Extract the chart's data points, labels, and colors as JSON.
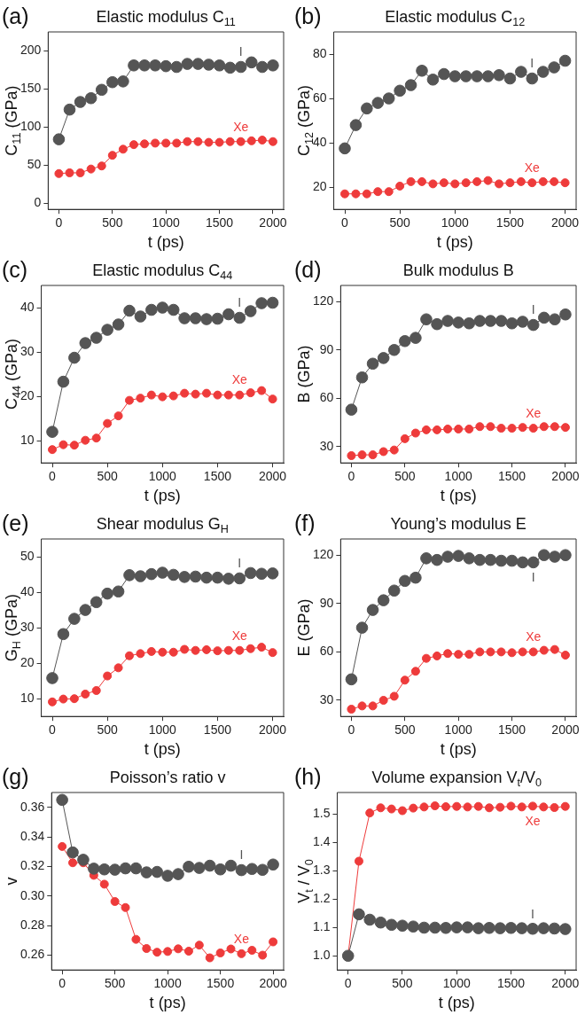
{
  "chart_data": [
    {
      "type": "line",
      "title": "Elastic modulus C$_{11}$",
      "xlabel": "t (ps)",
      "ylabel": "C$_{11}$ (GPa)",
      "annotations": [
        "(a)"
      ],
      "marker": "circle",
      "x": [
        0,
        100,
        200,
        300,
        400,
        500,
        600,
        700,
        800,
        900,
        1000,
        1100,
        1200,
        1300,
        1400,
        1500,
        1600,
        1700,
        1800,
        1900,
        2000
      ],
      "xlim": [
        -100,
        2100
      ],
      "xticks": [
        0,
        500,
        1000,
        1500,
        2000
      ],
      "ylim": [
        -8,
        225
      ],
      "yticks": [
        0,
        50,
        100,
        150,
        200
      ],
      "series": [
        {
          "name": "I",
          "color": "#555555",
          "values": [
            84,
            123,
            133,
            138,
            149,
            159,
            160,
            181,
            181,
            181,
            180,
            179,
            183,
            183,
            182,
            181,
            178,
            179,
            185,
            179,
            181
          ]
        },
        {
          "name": "Xe",
          "color": "#ee3b3b",
          "values": [
            39,
            40,
            40,
            45,
            49,
            63,
            71,
            77,
            78,
            79,
            79,
            79,
            81,
            81,
            80,
            80,
            81,
            81,
            82,
            83,
            81
          ]
        }
      ]
    },
    {
      "type": "line",
      "title": "Elastic modulus C$_{12}$",
      "xlabel": "t (ps)",
      "ylabel": "C$_{12}$ (GPa)",
      "annotations": [
        "(b)"
      ],
      "marker": "circle",
      "x": [
        0,
        100,
        200,
        300,
        400,
        500,
        600,
        700,
        800,
        900,
        1000,
        1100,
        1200,
        1300,
        1400,
        1500,
        1600,
        1700,
        1800,
        1900,
        2000
      ],
      "xlim": [
        -100,
        2100
      ],
      "xticks": [
        0,
        500,
        1000,
        1500,
        2000
      ],
      "ylim": [
        10,
        90
      ],
      "yticks": [
        20,
        40,
        60,
        80
      ],
      "series": [
        {
          "name": "I",
          "color": "#555555",
          "values": [
            37.5,
            48,
            55.5,
            58,
            60,
            63.5,
            66,
            72.5,
            68.5,
            71,
            70,
            70,
            70,
            70,
            70.5,
            69,
            72,
            69,
            72,
            74,
            77
          ]
        },
        {
          "name": "Xe",
          "color": "#ee3b3b",
          "values": [
            17,
            17,
            17,
            18,
            18,
            20.5,
            22.5,
            22.5,
            21.5,
            22,
            21.5,
            22,
            22.5,
            23,
            21.5,
            22,
            22.5,
            22,
            22.5,
            22.5,
            22
          ]
        }
      ]
    },
    {
      "type": "line",
      "title": "Elastic modulus C$_{44}$",
      "xlabel": "t (ps)",
      "ylabel": "C$_{44}$ (GPa)",
      "annotations": [
        "(c)"
      ],
      "marker": "circle",
      "x": [
        0,
        100,
        200,
        300,
        400,
        500,
        600,
        700,
        800,
        900,
        1000,
        1100,
        1200,
        1300,
        1400,
        1500,
        1600,
        1700,
        1800,
        1900,
        2000
      ],
      "xlim": [
        -100,
        2100
      ],
      "xticks": [
        0,
        500,
        1000,
        1500,
        2000
      ],
      "ylim": [
        5,
        45
      ],
      "yticks": [
        10,
        20,
        30,
        40
      ],
      "series": [
        {
          "name": "I",
          "color": "#555555",
          "values": [
            12,
            23.3,
            28.7,
            32,
            33.2,
            35,
            36.2,
            39.3,
            38,
            39.5,
            40,
            39.5,
            37.6,
            37.6,
            37.4,
            37.5,
            38.5,
            37.7,
            39.2,
            41,
            41.1
          ]
        },
        {
          "name": "Xe",
          "color": "#ee3b3b",
          "values": [
            8,
            9.1,
            9,
            10.1,
            10.6,
            13.9,
            15.6,
            19.1,
            19.6,
            20.3,
            19.9,
            20.1,
            20.7,
            20.5,
            20.7,
            20.3,
            20.3,
            20.3,
            20.8,
            21.3,
            19.4
          ]
        }
      ]
    },
    {
      "type": "line",
      "title": "Bulk modulus B",
      "xlabel": "t (ps)",
      "ylabel": "B (GPa)",
      "annotations": [
        "(d)"
      ],
      "marker": "circle",
      "x": [
        0,
        100,
        200,
        300,
        400,
        500,
        600,
        700,
        800,
        900,
        1000,
        1100,
        1200,
        1300,
        1400,
        1500,
        1600,
        1700,
        1800,
        1900,
        2000
      ],
      "xlim": [
        -100,
        2100
      ],
      "xticks": [
        0,
        500,
        1000,
        1500,
        2000
      ],
      "ylim": [
        20,
        130
      ],
      "yticks": [
        30,
        60,
        90,
        120
      ],
      "series": [
        {
          "name": "I",
          "color": "#555555",
          "values": [
            53,
            73,
            81.5,
            85,
            90,
            95.5,
            97.5,
            109,
            106,
            108,
            107,
            106.5,
            108,
            108,
            108,
            106.5,
            107.5,
            105.5,
            110,
            109,
            112
          ]
        },
        {
          "name": "Xe",
          "color": "#ee3b3b",
          "values": [
            24.5,
            25,
            25,
            27,
            28,
            35,
            38.5,
            40.5,
            40.5,
            41,
            41,
            41,
            42.5,
            42.5,
            41.5,
            41.5,
            42,
            41.5,
            42.5,
            42.5,
            42
          ]
        }
      ]
    },
    {
      "type": "line",
      "title": "Shear modulus G$_{H}$",
      "xlabel": "t (ps)",
      "ylabel": "G$_{H}$ (GPa)",
      "annotations": [
        "(e)"
      ],
      "marker": "circle",
      "x": [
        0,
        100,
        200,
        300,
        400,
        500,
        600,
        700,
        800,
        900,
        1000,
        1100,
        1200,
        1300,
        1400,
        1500,
        1600,
        1700,
        1800,
        1900,
        2000
      ],
      "xlim": [
        -100,
        2100
      ],
      "xticks": [
        0,
        500,
        1000,
        1500,
        2000
      ],
      "ylim": [
        5,
        55
      ],
      "yticks": [
        10,
        20,
        30,
        40,
        50
      ],
      "series": [
        {
          "name": "I",
          "color": "#555555",
          "values": [
            15.8,
            28.2,
            32.5,
            35,
            37.2,
            39.6,
            40.2,
            44.8,
            44.5,
            45.1,
            45.5,
            44.9,
            44.3,
            44.4,
            44.1,
            44.1,
            43.8,
            43.9,
            45.4,
            45.2,
            45.3
          ]
        },
        {
          "name": "Xe",
          "color": "#ee3b3b",
          "values": [
            9.1,
            9.9,
            10,
            11.3,
            12.3,
            16.4,
            18.7,
            22.1,
            22.7,
            23.3,
            23.1,
            23.1,
            23.9,
            23.6,
            23.8,
            23.5,
            23.6,
            23.6,
            24.1,
            24.5,
            23
          ]
        }
      ]
    },
    {
      "type": "line",
      "title": "Young’s modulus E",
      "xlabel": "t (ps)",
      "ylabel": "E (GPa)",
      "annotations": [
        "(f)"
      ],
      "marker": "circle",
      "x": [
        0,
        100,
        200,
        300,
        400,
        500,
        600,
        700,
        800,
        900,
        1000,
        1100,
        1200,
        1300,
        1400,
        1500,
        1600,
        1700,
        1800,
        1900,
        2000
      ],
      "xlim": [
        -100,
        2100
      ],
      "xticks": [
        0,
        500,
        1000,
        1500,
        2000
      ],
      "ylim": [
        20,
        130
      ],
      "yticks": [
        30,
        60,
        90,
        120
      ],
      "series": [
        {
          "name": "I",
          "color": "#555555",
          "values": [
            43,
            75,
            86,
            92,
            98,
            104,
            106,
            118,
            117,
            119,
            119.5,
            118,
            117,
            117,
            116.5,
            116.5,
            115.5,
            115.5,
            120,
            119,
            120
          ]
        },
        {
          "name": "Xe",
          "color": "#ee3b3b",
          "values": [
            24.5,
            26.5,
            26.5,
            30,
            32.5,
            42.5,
            48,
            56,
            57.5,
            59,
            58.5,
            58.5,
            60,
            60,
            60,
            59.5,
            60,
            60,
            61,
            61.5,
            58
          ]
        }
      ]
    },
    {
      "type": "line",
      "title": "Poisson’s ratio v",
      "xlabel": "t (ps)",
      "ylabel": "v",
      "annotations": [
        "(g)"
      ],
      "marker": "circle",
      "x": [
        0,
        100,
        200,
        300,
        400,
        500,
        600,
        700,
        800,
        900,
        1000,
        1100,
        1200,
        1300,
        1400,
        1500,
        1600,
        1700,
        1800,
        1900,
        2000
      ],
      "xlim": [
        -100,
        2100
      ],
      "xticks": [
        0,
        500,
        1000,
        1500,
        2000
      ],
      "ylim": [
        0.25,
        0.37
      ],
      "yticks": [
        0.26,
        0.28,
        {
          "value": 0.3,
          "label": "0.30"
        },
        0.32,
        0.34,
        0.36
      ],
      "series": [
        {
          "name": "I",
          "color": "#555555",
          "values": [
            0.365,
            0.3295,
            0.3245,
            0.3185,
            0.318,
            0.3178,
            0.3187,
            0.3187,
            0.316,
            0.3163,
            0.3137,
            0.3148,
            0.3198,
            0.319,
            0.3205,
            0.318,
            0.3205,
            0.3175,
            0.3183,
            0.3177,
            0.3213
          ]
        },
        {
          "name": "Xe",
          "color": "#ee3b3b",
          "values": [
            0.3335,
            0.3225,
            0.3225,
            0.314,
            0.308,
            0.2963,
            0.2922,
            0.2707,
            0.2645,
            0.262,
            0.2625,
            0.2643,
            0.2627,
            0.2668,
            0.2582,
            0.2615,
            0.2642,
            0.261,
            0.2633,
            0.26,
            0.269
          ]
        }
      ]
    },
    {
      "type": "line",
      "title": "Volume expansion V$_{t}$/V$_{0}$",
      "xlabel": "t (ps)",
      "ylabel": "V$_{t}$ / V$_{0}$",
      "annotations": [
        "(h)"
      ],
      "marker": "circle",
      "x": [
        0,
        100,
        200,
        300,
        400,
        500,
        600,
        700,
        800,
        900,
        1000,
        1100,
        1200,
        1300,
        1400,
        1500,
        1600,
        1700,
        1800,
        1900,
        2000
      ],
      "xlim": [
        -100,
        2100
      ],
      "xticks": [
        0,
        500,
        1000,
        1500,
        2000
      ],
      "ylim": [
        0.95,
        1.575
      ],
      "yticks": [
        {
          "value": 1,
          "label": "1.0"
        },
        1.1,
        1.2,
        1.3,
        1.4,
        1.5
      ],
      "series": [
        {
          "name": "I",
          "color": "#555555",
          "values": [
            1.0,
            1.146,
            1.127,
            1.117,
            1.109,
            1.106,
            1.103,
            1.099,
            1.099,
            1.098,
            1.1,
            1.1,
            1.097,
            1.098,
            1.097,
            1.098,
            1.097,
            1.095,
            1.097,
            1.096,
            1.094
          ]
        },
        {
          "name": "Xe",
          "color": "#ee3b3b",
          "values": [
            1.0,
            1.333,
            1.503,
            1.521,
            1.517,
            1.511,
            1.52,
            1.524,
            1.528,
            1.525,
            1.526,
            1.524,
            1.526,
            1.521,
            1.523,
            1.527,
            1.524,
            1.527,
            1.524,
            1.522,
            1.526
          ]
        }
      ]
    }
  ]
}
